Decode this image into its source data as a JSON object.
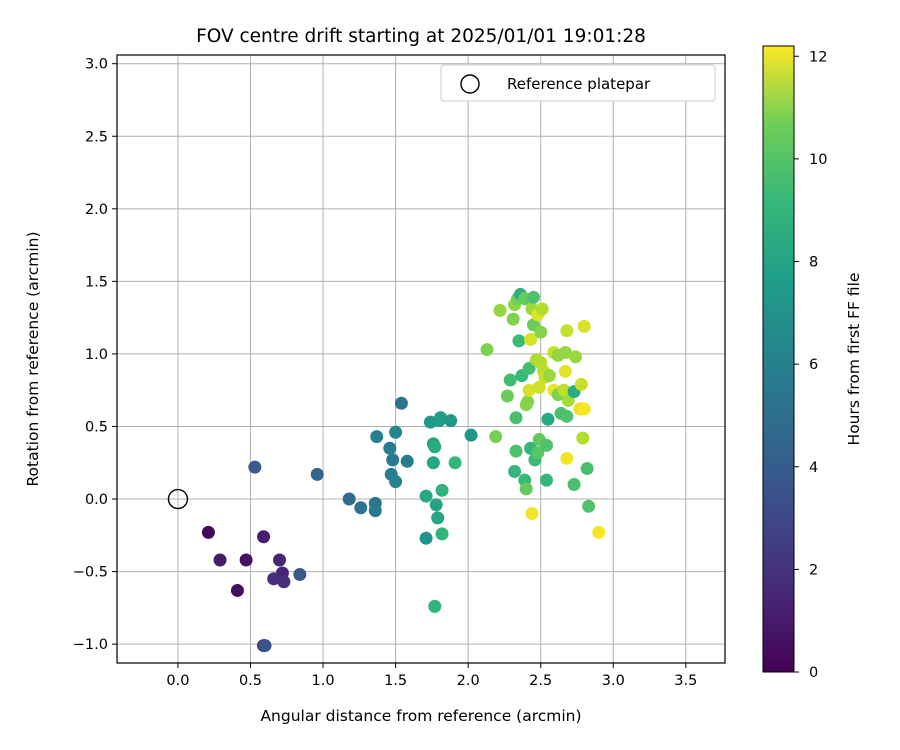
{
  "chart_data": {
    "type": "scatter",
    "title": "FOV centre drift starting at 2025/01/01 19:01:28",
    "xlabel": "Angular distance from reference (arcmin)",
    "ylabel": "Rotation from reference (arcmin)",
    "xlim": [
      -0.42,
      3.77
    ],
    "ylim": [
      -1.13,
      3.06
    ],
    "xticks": [
      "0.0",
      "0.5",
      "1.0",
      "1.5",
      "2.0",
      "2.5",
      "3.0",
      "3.5"
    ],
    "yticks": [
      "−1.0",
      "−0.5",
      "0.0",
      "0.5",
      "1.0",
      "1.5",
      "2.0",
      "2.5",
      "3.0"
    ],
    "grid": true,
    "legend": {
      "entries": [
        "Reference platepar"
      ],
      "position": "top-right"
    },
    "reference_point": {
      "x": 0.0,
      "y": 0.0,
      "marker": "open-circle"
    },
    "colorbar": {
      "label": "Hours from first FF file",
      "colormap": "viridis",
      "range": [
        0,
        12.2
      ],
      "ticks": [
        "0",
        "2",
        "4",
        "6",
        "8",
        "10",
        "12"
      ]
    },
    "points": [
      {
        "x": 0.21,
        "y": -0.23,
        "c": 0.2
      },
      {
        "x": 0.29,
        "y": -0.42,
        "c": 0.9
      },
      {
        "x": 0.41,
        "y": -0.63,
        "c": 0.5
      },
      {
        "x": 0.47,
        "y": -0.42,
        "c": 0.6
      },
      {
        "x": 0.59,
        "y": -0.26,
        "c": 1.0
      },
      {
        "x": 0.59,
        "y": -1.01,
        "c": 1.4
      },
      {
        "x": 0.6,
        "y": -1.01,
        "c": 3.2
      },
      {
        "x": 0.66,
        "y": -0.55,
        "c": 1.5
      },
      {
        "x": 0.7,
        "y": -0.42,
        "c": 1.2
      },
      {
        "x": 0.72,
        "y": -0.51,
        "c": 1.3
      },
      {
        "x": 0.73,
        "y": -0.57,
        "c": 1.6
      },
      {
        "x": 0.84,
        "y": -0.52,
        "c": 3.4
      },
      {
        "x": 0.53,
        "y": 0.22,
        "c": 3.5
      },
      {
        "x": 0.96,
        "y": 0.17,
        "c": 3.9
      },
      {
        "x": 1.18,
        "y": 0.0,
        "c": 4.2
      },
      {
        "x": 1.26,
        "y": -0.06,
        "c": 4.6
      },
      {
        "x": 1.36,
        "y": -0.03,
        "c": 4.8
      },
      {
        "x": 1.36,
        "y": -0.08,
        "c": 4.9
      },
      {
        "x": 1.37,
        "y": 0.43,
        "c": 5.3
      },
      {
        "x": 1.46,
        "y": 0.35,
        "c": 5.1
      },
      {
        "x": 1.47,
        "y": 0.17,
        "c": 5.2
      },
      {
        "x": 1.48,
        "y": 0.27,
        "c": 5.0
      },
      {
        "x": 1.5,
        "y": 0.46,
        "c": 5.6
      },
      {
        "x": 1.5,
        "y": 0.12,
        "c": 5.4
      },
      {
        "x": 1.54,
        "y": 0.66,
        "c": 4.8
      },
      {
        "x": 1.58,
        "y": 0.26,
        "c": 5.1
      },
      {
        "x": 1.71,
        "y": 0.02,
        "c": 7.3
      },
      {
        "x": 1.71,
        "y": -0.27,
        "c": 6.3
      },
      {
        "x": 1.74,
        "y": 0.53,
        "c": 6.6
      },
      {
        "x": 1.76,
        "y": 0.38,
        "c": 7.0
      },
      {
        "x": 1.76,
        "y": 0.25,
        "c": 7.2
      },
      {
        "x": 1.77,
        "y": 0.36,
        "c": 7.5
      },
      {
        "x": 1.77,
        "y": -0.74,
        "c": 7.9
      },
      {
        "x": 1.78,
        "y": -0.04,
        "c": 7.0
      },
      {
        "x": 1.79,
        "y": -0.13,
        "c": 7.2
      },
      {
        "x": 1.8,
        "y": 0.54,
        "c": 6.5
      },
      {
        "x": 1.81,
        "y": 0.56,
        "c": 6.8
      },
      {
        "x": 1.82,
        "y": 0.06,
        "c": 7.8
      },
      {
        "x": 1.82,
        "y": -0.24,
        "c": 7.9
      },
      {
        "x": 1.88,
        "y": 0.54,
        "c": 6.5
      },
      {
        "x": 1.91,
        "y": 0.25,
        "c": 8.1
      },
      {
        "x": 2.02,
        "y": 0.44,
        "c": 6.4
      },
      {
        "x": 2.13,
        "y": 1.03,
        "c": 9.8
      },
      {
        "x": 2.19,
        "y": 0.43,
        "c": 9.6
      },
      {
        "x": 2.22,
        "y": 1.3,
        "c": 10.2
      },
      {
        "x": 2.27,
        "y": 0.71,
        "c": 9.4
      },
      {
        "x": 2.29,
        "y": 0.82,
        "c": 8.4
      },
      {
        "x": 2.31,
        "y": 1.24,
        "c": 9.8
      },
      {
        "x": 2.32,
        "y": 1.34,
        "c": 10.1
      },
      {
        "x": 2.32,
        "y": 0.19,
        "c": 8.0
      },
      {
        "x": 2.33,
        "y": 0.33,
        "c": 8.7
      },
      {
        "x": 2.33,
        "y": 0.56,
        "c": 8.6
      },
      {
        "x": 2.34,
        "y": 1.38,
        "c": 9.6
      },
      {
        "x": 2.35,
        "y": 1.09,
        "c": 8.3
      },
      {
        "x": 2.36,
        "y": 1.41,
        "c": 7.8
      },
      {
        "x": 2.37,
        "y": 0.85,
        "c": 8.2
      },
      {
        "x": 2.39,
        "y": 1.38,
        "c": 9.3
      },
      {
        "x": 2.39,
        "y": 0.13,
        "c": 8.2
      },
      {
        "x": 2.4,
        "y": 0.65,
        "c": 10.0
      },
      {
        "x": 2.4,
        "y": 0.07,
        "c": 9.2
      },
      {
        "x": 2.41,
        "y": 0.67,
        "c": 9.9
      },
      {
        "x": 2.42,
        "y": 0.75,
        "c": 11.5
      },
      {
        "x": 2.42,
        "y": 0.9,
        "c": 8.5
      },
      {
        "x": 2.43,
        "y": 1.1,
        "c": 11.4
      },
      {
        "x": 2.43,
        "y": 0.35,
        "c": 8.1
      },
      {
        "x": 2.44,
        "y": 1.31,
        "c": 10.4
      },
      {
        "x": 2.44,
        "y": -0.1,
        "c": 11.9
      },
      {
        "x": 2.45,
        "y": 1.39,
        "c": 8.7
      },
      {
        "x": 2.45,
        "y": 1.2,
        "c": 9.4
      },
      {
        "x": 2.46,
        "y": 0.27,
        "c": 8.3
      },
      {
        "x": 2.47,
        "y": 0.96,
        "c": 10.6
      },
      {
        "x": 2.48,
        "y": 1.27,
        "c": 11.6
      },
      {
        "x": 2.48,
        "y": 0.32,
        "c": 9.0
      },
      {
        "x": 2.49,
        "y": 0.41,
        "c": 9.2
      },
      {
        "x": 2.49,
        "y": 0.77,
        "c": 11.3
      },
      {
        "x": 2.5,
        "y": 0.94,
        "c": 10.8
      },
      {
        "x": 2.5,
        "y": 1.15,
        "c": 9.9
      },
      {
        "x": 2.51,
        "y": 1.31,
        "c": 10.8
      },
      {
        "x": 2.52,
        "y": 0.88,
        "c": 10.9
      },
      {
        "x": 2.53,
        "y": 0.84,
        "c": 11.2
      },
      {
        "x": 2.54,
        "y": 0.37,
        "c": 8.8
      },
      {
        "x": 2.54,
        "y": 0.13,
        "c": 8.1
      },
      {
        "x": 2.55,
        "y": 0.55,
        "c": 7.4
      },
      {
        "x": 2.56,
        "y": 0.85,
        "c": 10.3
      },
      {
        "x": 2.59,
        "y": 1.01,
        "c": 11.1
      },
      {
        "x": 2.59,
        "y": 0.75,
        "c": 11.8
      },
      {
        "x": 2.62,
        "y": 0.72,
        "c": 9.7
      },
      {
        "x": 2.62,
        "y": 0.99,
        "c": 10.2
      },
      {
        "x": 2.64,
        "y": 0.59,
        "c": 8.6
      },
      {
        "x": 2.66,
        "y": 0.75,
        "c": 11.0
      },
      {
        "x": 2.67,
        "y": 1.01,
        "c": 10.2
      },
      {
        "x": 2.67,
        "y": 0.88,
        "c": 11.7
      },
      {
        "x": 2.68,
        "y": 1.16,
        "c": 11.1
      },
      {
        "x": 2.68,
        "y": 0.57,
        "c": 8.7
      },
      {
        "x": 2.68,
        "y": 0.28,
        "c": 11.9
      },
      {
        "x": 2.69,
        "y": 0.68,
        "c": 10.5
      },
      {
        "x": 2.73,
        "y": 0.74,
        "c": 7.6
      },
      {
        "x": 2.73,
        "y": 0.1,
        "c": 8.6
      },
      {
        "x": 2.74,
        "y": 0.98,
        "c": 10.3
      },
      {
        "x": 2.77,
        "y": 0.62,
        "c": 11.8
      },
      {
        "x": 2.78,
        "y": 0.79,
        "c": 11.2
      },
      {
        "x": 2.79,
        "y": 0.42,
        "c": 10.8
      },
      {
        "x": 2.8,
        "y": 0.62,
        "c": 12.1
      },
      {
        "x": 2.8,
        "y": 1.19,
        "c": 11.5
      },
      {
        "x": 2.82,
        "y": 0.21,
        "c": 8.6
      },
      {
        "x": 2.83,
        "y": -0.05,
        "c": 8.8
      },
      {
        "x": 2.9,
        "y": -0.23,
        "c": 12.1
      }
    ]
  }
}
